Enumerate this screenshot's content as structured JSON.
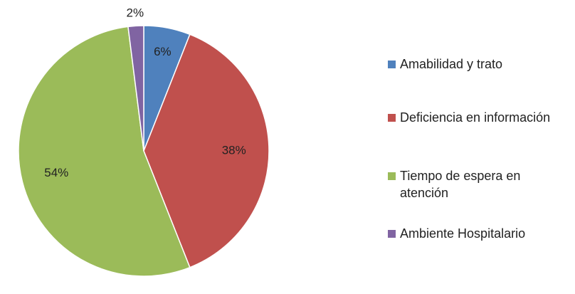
{
  "chart_data": {
    "type": "pie",
    "categories": [
      "Amabilidad y trato",
      "Deficiencia en información",
      "Tiempo de espera en atención",
      "Ambiente Hospitalario"
    ],
    "values": [
      6,
      38,
      54,
      2
    ],
    "value_labels": [
      "6%",
      "38%",
      "54%",
      "2%"
    ],
    "colors": [
      "#4f81bd",
      "#c0504d",
      "#9bbb59",
      "#8064a2"
    ],
    "legend": "right"
  }
}
